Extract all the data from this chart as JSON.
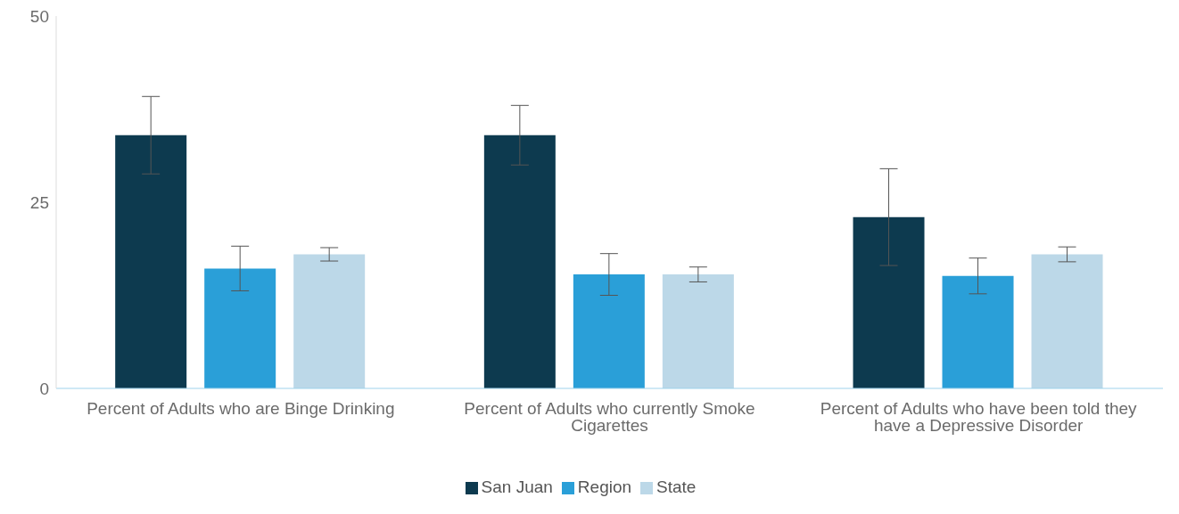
{
  "chart_data": {
    "type": "bar",
    "categories": [
      "Percent of Adults who are Binge Drinking",
      "Percent of Adults who currently Smoke Cigarettes",
      "Percent of Adults who have been told they have a Depressive Disorder"
    ],
    "series": [
      {
        "name": "San Juan",
        "color": "#0d3a4f",
        "values": [
          34,
          34,
          23
        ],
        "errors": [
          5.2,
          4,
          6.5
        ]
      },
      {
        "name": "Region",
        "color": "#2a9fd8",
        "values": [
          16.1,
          15.3,
          15.1
        ],
        "errors": [
          3,
          2.8,
          2.4
        ]
      },
      {
        "name": "State",
        "color": "#bcd8e8",
        "values": [
          18,
          15.3,
          18
        ],
        "errors": [
          0.9,
          1,
          1
        ]
      }
    ],
    "ylim": [
      0,
      50
    ],
    "yticks": [
      0,
      25,
      50
    ],
    "grid": false,
    "legend": "bottom"
  }
}
